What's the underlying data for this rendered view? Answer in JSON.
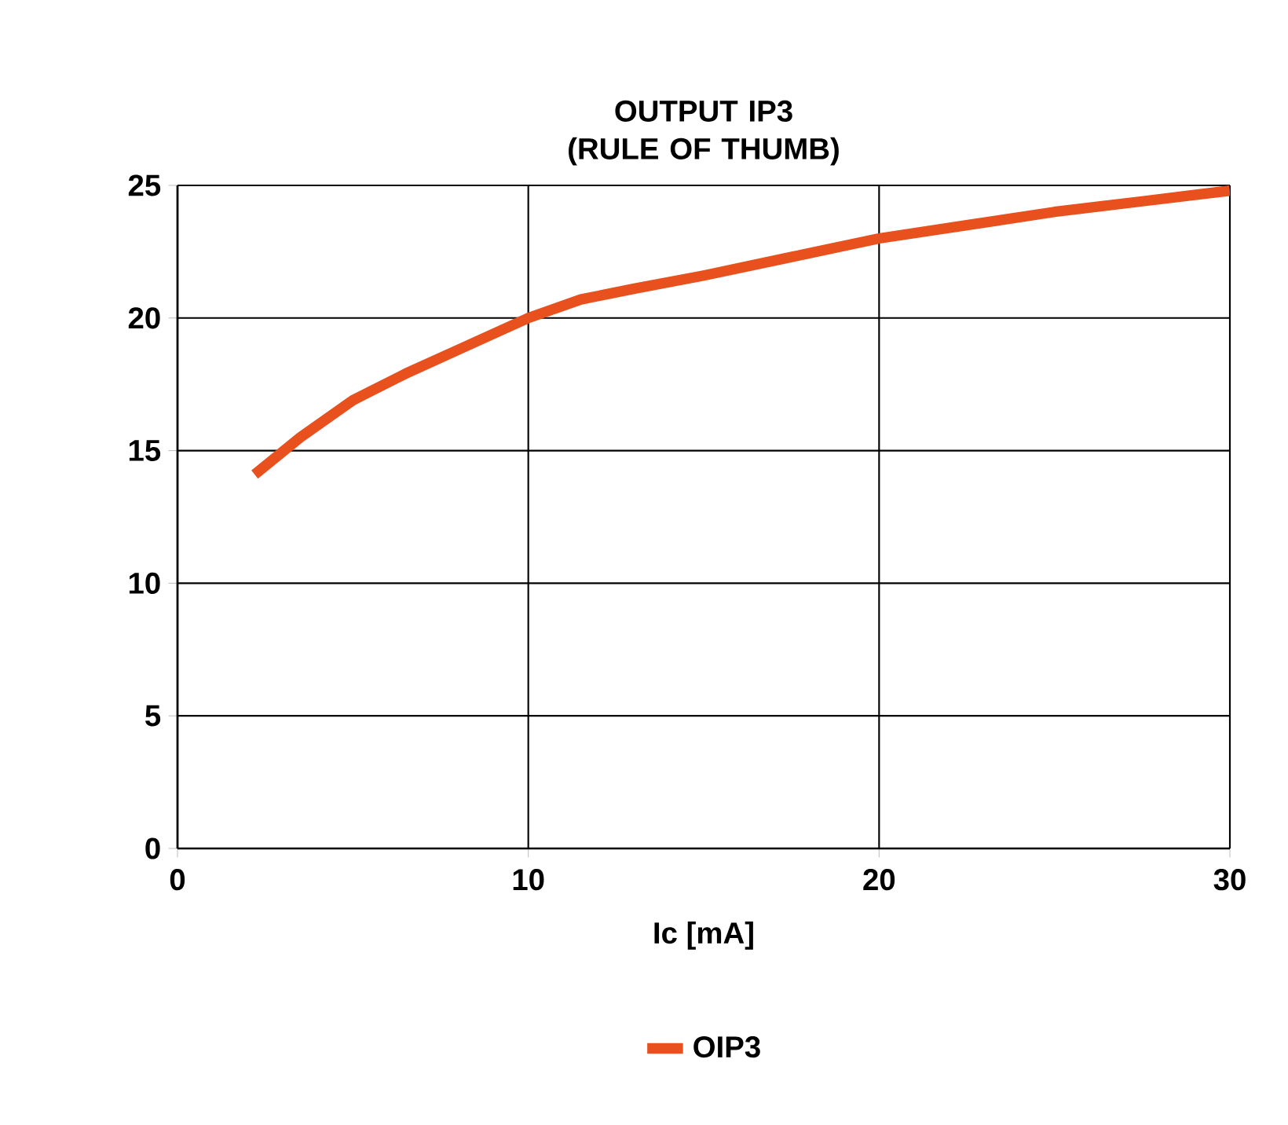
{
  "chart_data": {
    "type": "line",
    "title": "OUTPUT IP3\n(RULE OF THUMB)",
    "xlabel": "Ic [mA]",
    "series": [
      {
        "name": "OIP3",
        "color": "#e8501e",
        "x": [
          2.2,
          3.5,
          5,
          6.5,
          8,
          10,
          11.5,
          13,
          15,
          17.5,
          20,
          22.5,
          25,
          27.5,
          30
        ],
        "values": [
          14.1,
          15.5,
          16.9,
          17.9,
          18.8,
          20.0,
          20.7,
          21.1,
          21.6,
          22.3,
          23.0,
          23.5,
          24.0,
          24.4,
          24.8
        ]
      }
    ],
    "xlim": [
      0,
      30
    ],
    "xticks": [
      0,
      10,
      20,
      30
    ],
    "ylim": [
      0,
      25
    ],
    "yticks": [
      0,
      5,
      10,
      15,
      20,
      25
    ],
    "grid": true,
    "legend": "bottom",
    "marker": "none",
    "line_style": "solid"
  }
}
